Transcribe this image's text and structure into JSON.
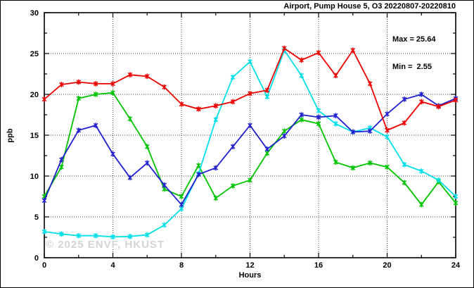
{
  "chart_data": {
    "type": "line",
    "title": "Airport, Pump House 5, O3 20220807-20220810",
    "xlabel": "Hours",
    "ylabel": "ppb",
    "annotations": {
      "max_label": "Max = 25.64",
      "min_label": "Min =  2.55"
    },
    "watermark": "© 2025 ENVF, HKUST",
    "xlim": [
      0,
      24
    ],
    "ylim": [
      0,
      30
    ],
    "x_ticks": [
      0,
      4,
      8,
      12,
      16,
      20,
      24
    ],
    "y_ticks": [
      0,
      5,
      10,
      15,
      20,
      25,
      30
    ],
    "x_minor_step": 2,
    "y_minor_step": 2.5,
    "grid": "dotted-at-major-ticks",
    "legend": "none",
    "marker": "star",
    "x": [
      0,
      1,
      2,
      3,
      4,
      5,
      6,
      7,
      8,
      9,
      10,
      11,
      12,
      13,
      14,
      15,
      16,
      17,
      18,
      19,
      20,
      21,
      22,
      23,
      24
    ],
    "series": [
      {
        "color_name": "green",
        "color": "#00c400",
        "values": [
          7.5,
          11.1,
          19.5,
          20.0,
          20.2,
          17.0,
          13.6,
          8.4,
          7.5,
          11.3,
          7.3,
          8.8,
          9.5,
          12.8,
          15.5,
          16.9,
          16.4,
          11.7,
          11.0,
          11.6,
          11.1,
          9.2,
          6.5,
          9.3,
          6.7
        ]
      },
      {
        "color_name": "cyan",
        "color": "#00e0ea",
        "values": [
          3.2,
          2.9,
          2.7,
          2.7,
          2.55,
          2.6,
          2.8,
          4.0,
          6.0,
          10.3,
          16.9,
          22.1,
          24.0,
          19.7,
          25.4,
          22.3,
          18.0,
          16.4,
          15.4,
          15.9,
          14.8,
          11.4,
          10.6,
          9.5,
          7.5
        ]
      },
      {
        "color_name": "blue",
        "color": "#2020d0",
        "values": [
          7.0,
          12.0,
          15.6,
          16.2,
          12.7,
          9.8,
          11.6,
          8.9,
          6.5,
          10.2,
          11.0,
          13.6,
          16.2,
          13.3,
          14.9,
          17.5,
          17.2,
          17.4,
          15.4,
          15.5,
          17.6,
          19.4,
          20.0,
          18.6,
          19.5
        ]
      },
      {
        "color_name": "red",
        "color": "#ee0000",
        "values": [
          19.4,
          21.2,
          21.5,
          21.3,
          21.3,
          22.4,
          22.2,
          20.9,
          18.8,
          18.2,
          18.6,
          19.1,
          20.1,
          20.5,
          25.64,
          24.2,
          25.1,
          22.3,
          25.4,
          21.3,
          15.6,
          16.5,
          19.1,
          18.5,
          19.3
        ]
      }
    ],
    "border_color": "#000000",
    "grid_color": "#444444"
  }
}
